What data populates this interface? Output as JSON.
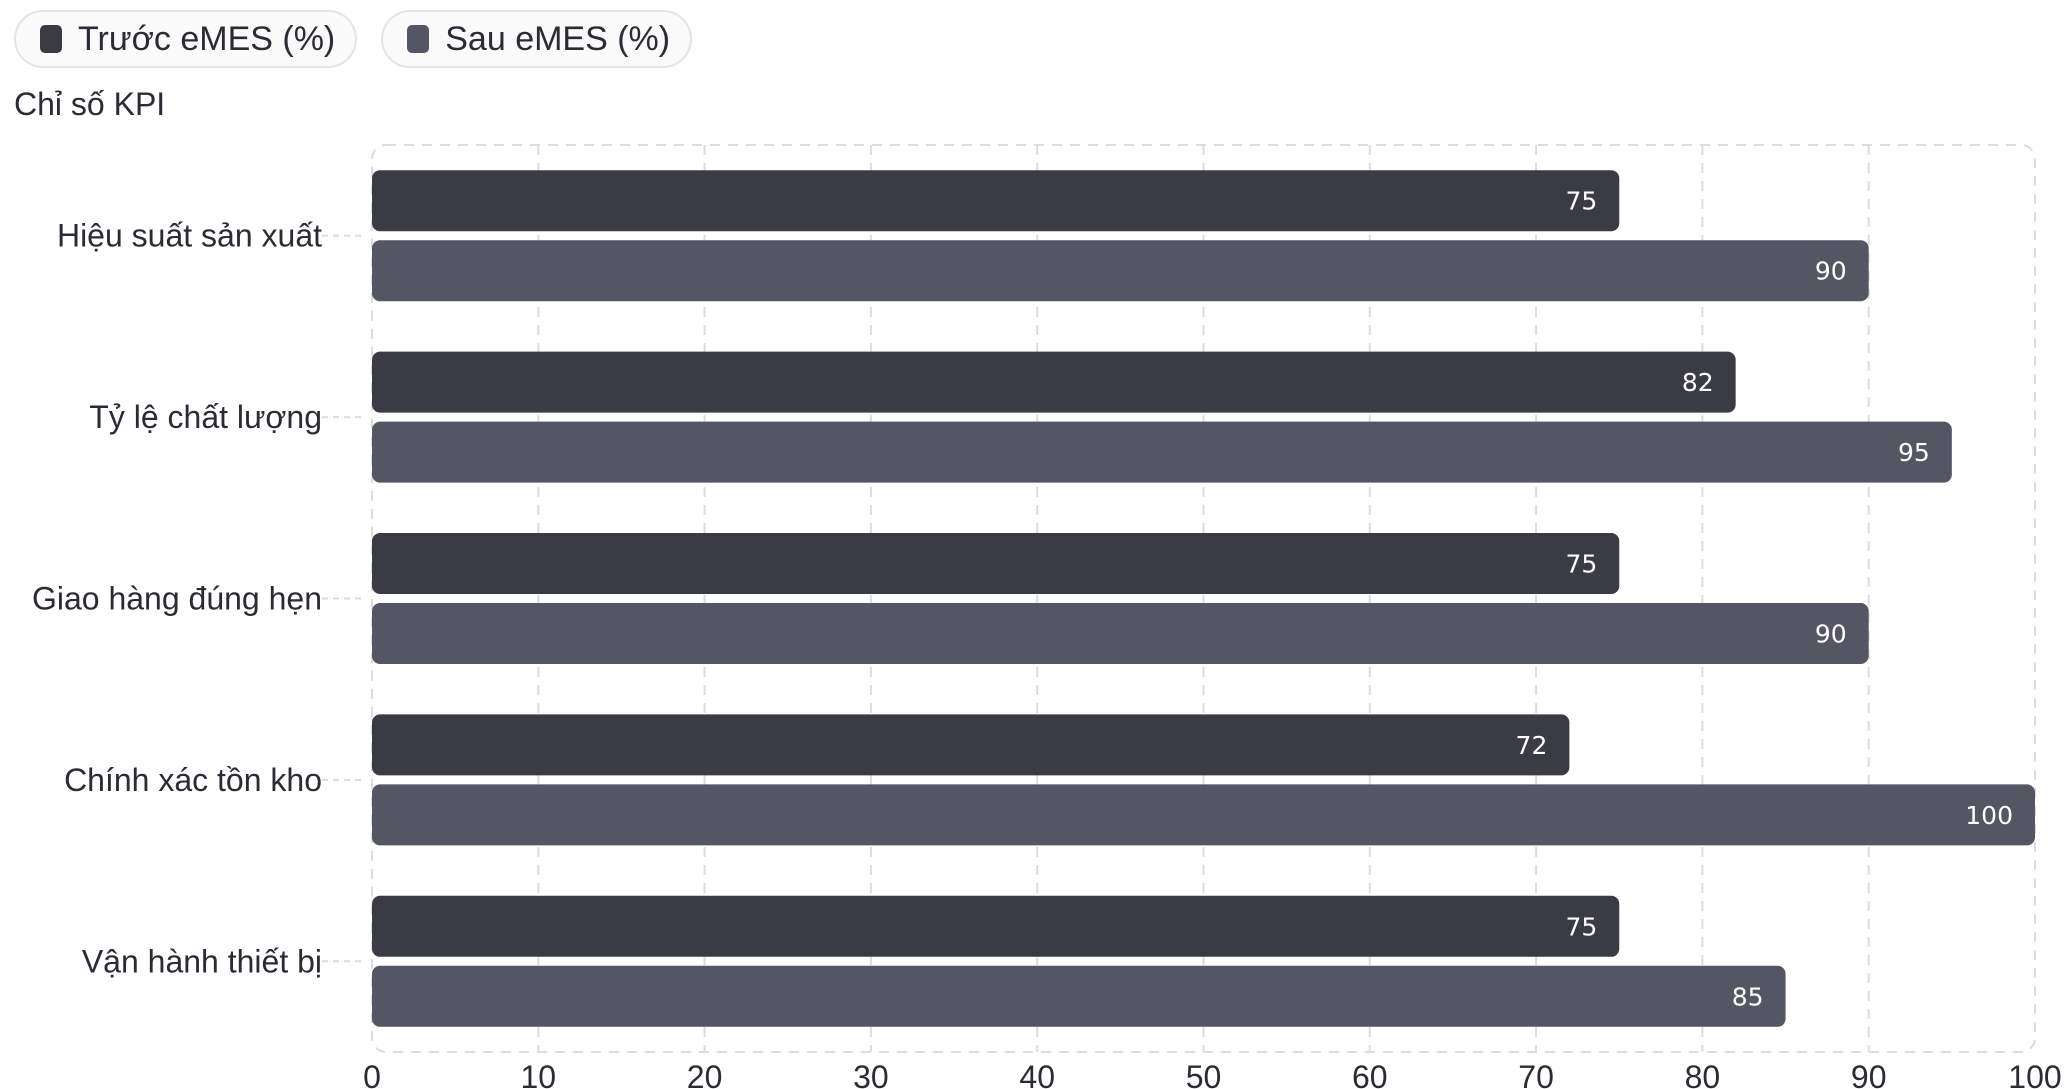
{
  "legend": [
    {
      "label": "Trước eMES (%)",
      "color": "#3b3b44"
    },
    {
      "label": "Sau eMES (%)",
      "color": "#545763"
    }
  ],
  "y_axis_title": "Chỉ số KPI",
  "chart_data": {
    "type": "bar",
    "orientation": "horizontal",
    "categories": [
      "Hiệu suất sản xuất",
      "Tỷ lệ chất lượng",
      "Giao hàng đúng hẹn",
      "Chính xác tồn kho",
      "Vận hành thiết bị"
    ],
    "series": [
      {
        "name": "Trước eMES (%)",
        "color": "#3b3b44",
        "values": [
          75,
          82,
          75,
          72,
          75
        ]
      },
      {
        "name": "Sau eMES (%)",
        "color": "#545763",
        "values": [
          90,
          95,
          90,
          100,
          85
        ]
      }
    ],
    "ylabel": "Chỉ số KPI",
    "xlim": [
      0,
      100
    ],
    "xticks": [
      0,
      10,
      20,
      30,
      40,
      50,
      60,
      70,
      80,
      90,
      100
    ],
    "grid": true,
    "legend_position": "top-left"
  }
}
